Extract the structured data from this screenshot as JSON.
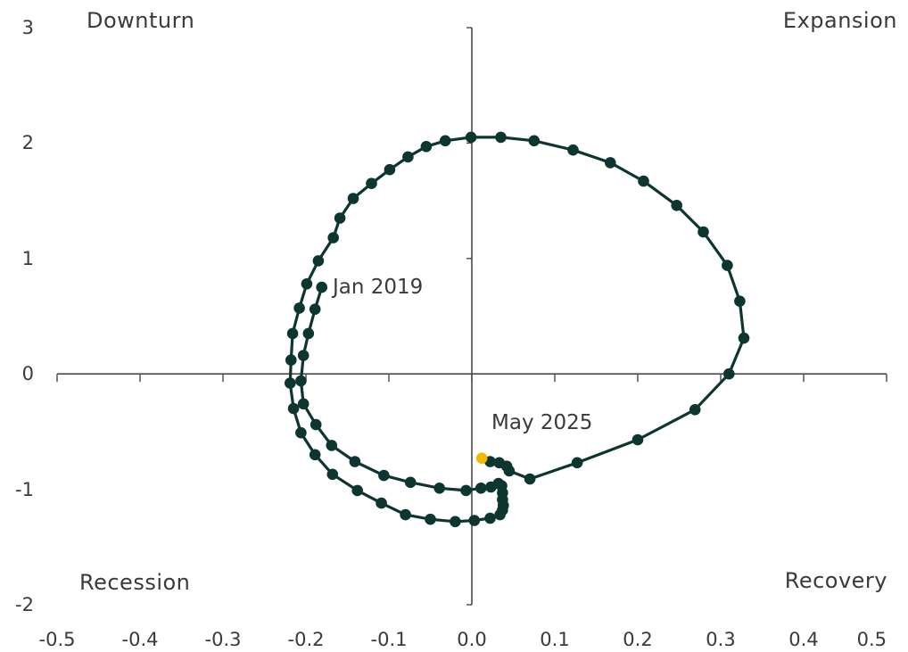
{
  "chart_data": {
    "type": "scatter",
    "xlim": [
      -0.5,
      0.5
    ],
    "ylim": [
      -2,
      3
    ],
    "x_ticks": [
      "-0.5",
      "-0.4",
      "-0.3",
      "-0.2",
      "-0.1",
      "0.0",
      "0.1",
      "0.2",
      "0.3",
      "0.4",
      "0.5"
    ],
    "y_ticks": [
      "3",
      "2",
      "1",
      "0",
      "-1",
      "-2"
    ],
    "grid": false,
    "quadrant_labels": {
      "top_left": "Downturn",
      "top_right": "Expansion",
      "bottom_left": "Recession",
      "bottom_right": "Recovery"
    },
    "annotations": {
      "start": "Jan 2019",
      "end": "May 2025"
    },
    "colors": {
      "series": "#0d3631",
      "highlight": "#f5b800",
      "axis": "#4a4a4a",
      "text": "#3a3a3a"
    },
    "series": [
      {
        "points": [
          [
            -0.181,
            0.75
          ],
          [
            -0.189,
            0.56
          ],
          [
            -0.197,
            0.35
          ],
          [
            -0.203,
            0.16
          ],
          [
            -0.206,
            -0.06
          ],
          [
            -0.203,
            -0.26
          ],
          [
            -0.188,
            -0.44
          ],
          [
            -0.169,
            -0.62
          ],
          [
            -0.141,
            -0.76
          ],
          [
            -0.106,
            -0.88
          ],
          [
            -0.074,
            -0.94
          ],
          [
            -0.039,
            -0.99
          ],
          [
            -0.007,
            -1.01
          ],
          [
            0.011,
            -0.99
          ],
          [
            0.023,
            -0.98
          ],
          [
            0.032,
            -0.95
          ],
          [
            0.036,
            -0.97
          ],
          [
            0.037,
            -1.03
          ],
          [
            0.037,
            -1.09
          ],
          [
            0.038,
            -1.14
          ],
          [
            0.037,
            -1.18
          ],
          [
            0.034,
            -1.22
          ],
          [
            0.022,
            -1.25
          ],
          [
            0.003,
            -1.27
          ],
          [
            -0.02,
            -1.28
          ],
          [
            -0.05,
            -1.26
          ],
          [
            -0.08,
            -1.22
          ],
          [
            -0.109,
            -1.12
          ],
          [
            -0.138,
            -1.01
          ],
          [
            -0.168,
            -0.87
          ],
          [
            -0.189,
            -0.7
          ],
          [
            -0.206,
            -0.51
          ],
          [
            -0.215,
            -0.3
          ],
          [
            -0.219,
            -0.08
          ],
          [
            -0.218,
            0.12
          ],
          [
            -0.216,
            0.35
          ],
          [
            -0.208,
            0.57
          ],
          [
            -0.199,
            0.78
          ],
          [
            -0.185,
            0.98
          ],
          [
            -0.167,
            1.18
          ],
          [
            -0.159,
            1.35
          ],
          [
            -0.143,
            1.52
          ],
          [
            -0.121,
            1.65
          ],
          [
            -0.099,
            1.77
          ],
          [
            -0.077,
            1.88
          ],
          [
            -0.055,
            1.97
          ],
          [
            -0.032,
            2.02
          ],
          [
            -0.001,
            2.05
          ],
          [
            0.035,
            2.05
          ],
          [
            0.075,
            2.02
          ],
          [
            0.122,
            1.94
          ],
          [
            0.167,
            1.83
          ],
          [
            0.207,
            1.67
          ],
          [
            0.247,
            1.46
          ],
          [
            0.279,
            1.23
          ],
          [
            0.308,
            0.94
          ],
          [
            0.323,
            0.63
          ],
          [
            0.328,
            0.31
          ],
          [
            0.31,
            0.0
          ],
          [
            0.269,
            -0.31
          ],
          [
            0.2,
            -0.57
          ],
          [
            0.127,
            -0.77
          ],
          [
            0.07,
            -0.91
          ],
          [
            0.045,
            -0.84
          ],
          [
            0.042,
            -0.8
          ],
          [
            0.033,
            -0.77
          ],
          [
            0.022,
            -0.76
          ],
          [
            0.012,
            -0.73
          ]
        ]
      }
    ]
  }
}
